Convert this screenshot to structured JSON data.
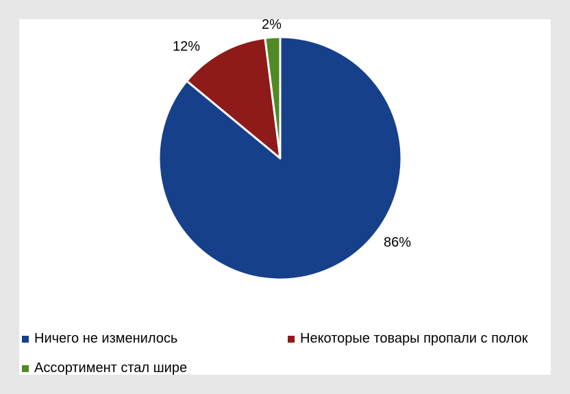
{
  "chart_data": {
    "type": "pie",
    "title": "",
    "legend_position": "bottom",
    "slices": [
      {
        "label": "Ничего не изменилось",
        "value": 86,
        "display": "86%",
        "color": "#17408b"
      },
      {
        "label": "Некоторые товары пропали с полок",
        "value": 12,
        "display": "12%",
        "color": "#8e1b1a"
      },
      {
        "label": "Ассортимент стал шире",
        "value": 2,
        "display": "2%",
        "color": "#4f8a24"
      }
    ]
  }
}
